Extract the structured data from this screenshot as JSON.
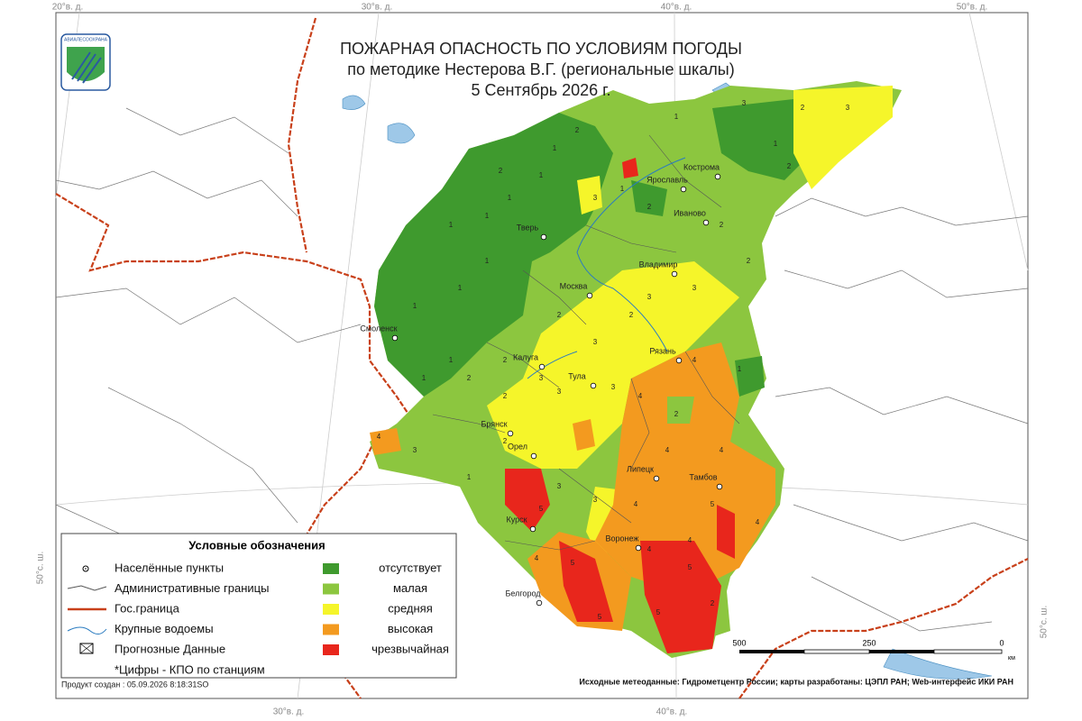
{
  "header": {
    "logo": "АВИАЛЕСООХРАНА",
    "title": "ПОЖАРНАЯ ОПАСНОСТЬ ПО УСЛОВИЯМ ПОГОДЫ",
    "subtitle": "по методике Нестерова В.Г. (региональные шкалы)",
    "date": "5 Сентябрь 2026 г."
  },
  "graticule": {
    "top": [
      "20°в. д.",
      "30°в. д.",
      "40°в. д.",
      "50°в. д."
    ],
    "bottom": [
      "30°в. д.",
      "40°в. д."
    ],
    "left": "50°с. ш.",
    "right": "50°с. ш."
  },
  "cities": [
    "Кострома",
    "Ярославль",
    "Иваново",
    "Тверь",
    "Владимир",
    "Москва",
    "Смоленск",
    "Рязань",
    "Калуга",
    "Тула",
    "Брянск",
    "Орел",
    "Липецк",
    "Тамбов",
    "Курск",
    "Воронеж",
    "Белгород"
  ],
  "stations": [
    1,
    1,
    1,
    1,
    1,
    1,
    1,
    1,
    2,
    1,
    1,
    2,
    3,
    1,
    2,
    1,
    3,
    1,
    2,
    3,
    2,
    2,
    2,
    3,
    3,
    2,
    3,
    2,
    3,
    2,
    2,
    2,
    3,
    3,
    4,
    4,
    2,
    1,
    4,
    4,
    4,
    5,
    4,
    3,
    3,
    5,
    4,
    5,
    5,
    4,
    5,
    4,
    2,
    5,
    2,
    1,
    3,
    4
  ],
  "legend": {
    "title": "Условные обозначения",
    "symbols": [
      "Населённые пункты",
      "Административные границы",
      "Гос.граница",
      "Крупные водоемы",
      "Прогнозные Данные"
    ],
    "note": "*Цифры - КПО по станциям",
    "classes": [
      {
        "label": "отсутствует",
        "color": "#3f9a2e"
      },
      {
        "label": "малая",
        "color": "#8cc63f"
      },
      {
        "label": "средняя",
        "color": "#f5f52a"
      },
      {
        "label": "высокая",
        "color": "#f39a1f"
      },
      {
        "label": "чрезвычайная",
        "color": "#e8261c"
      }
    ]
  },
  "scale": {
    "labels": [
      "500",
      "250",
      "0"
    ],
    "unit": "км"
  },
  "footer": {
    "created": "Продукт создан : 05.09.2026 8:18:31SO",
    "source": "Исходные метеоданные: Гидрометцентр России; карты разработаны: ЦЭПЛ РАН; Web-интерфейс ИКИ РАН"
  }
}
